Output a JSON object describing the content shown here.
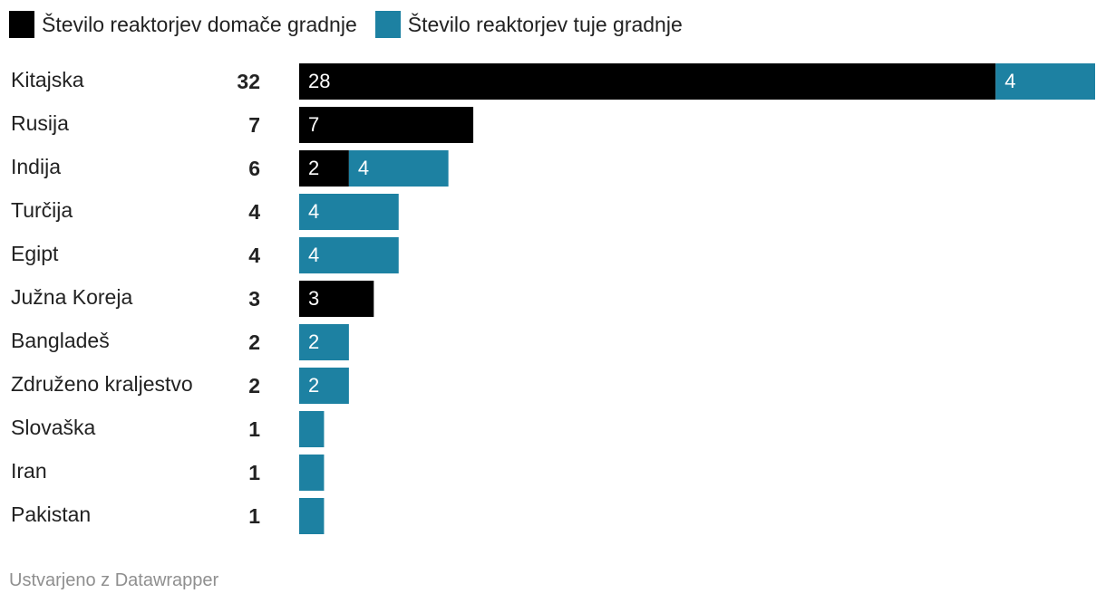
{
  "chart_data": {
    "type": "bar",
    "stacked": true,
    "orientation": "horizontal",
    "categories": [
      "Kitajska",
      "Rusija",
      "Indija",
      "Turčija",
      "Egipt",
      "Južna Koreja",
      "Bangladeš",
      "Združeno kraljestvo",
      "Slovaška",
      "Iran",
      "Pakistan"
    ],
    "totals": [
      32,
      7,
      6,
      4,
      4,
      3,
      2,
      2,
      1,
      1,
      1
    ],
    "series": [
      {
        "name": "Število reaktorjev domače gradnje",
        "color": "#000000",
        "values": [
          28,
          7,
          2,
          0,
          0,
          3,
          0,
          0,
          0,
          0,
          0
        ]
      },
      {
        "name": "Število reaktorjev tuje gradnje",
        "color": "#1d81a2",
        "values": [
          4,
          0,
          4,
          4,
          4,
          0,
          2,
          2,
          1,
          1,
          1
        ]
      }
    ],
    "xlim": [
      0,
      32
    ],
    "legend": "top-left",
    "grid": false
  },
  "footer": "Ustvarjeno z Datawrapper"
}
